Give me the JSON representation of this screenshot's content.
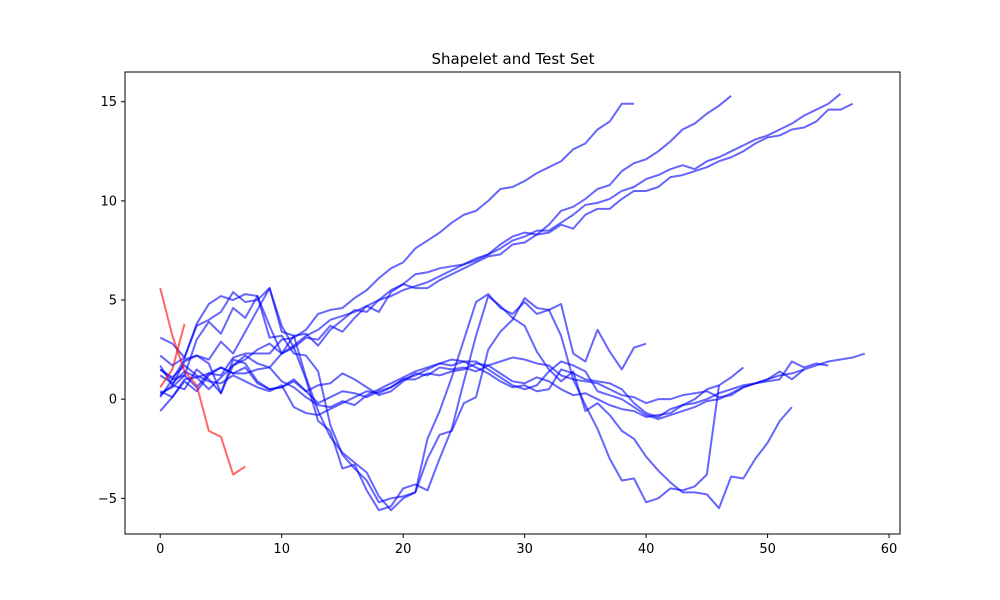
{
  "chart_data": {
    "type": "line",
    "title": "Shapelet and Test Set",
    "xlabel": "",
    "ylabel": "",
    "xlim": [
      -2.9,
      60.9
    ],
    "ylim": [
      -6.8,
      16.5
    ],
    "x_ticks": [
      0,
      10,
      20,
      30,
      40,
      50,
      60
    ],
    "y_ticks": [
      -5,
      0,
      5,
      10,
      15
    ],
    "grid": false,
    "colors": {
      "shapelet": "#ff0000",
      "test": "#0000ff"
    },
    "series": [
      {
        "role": "shapelet",
        "values": [
          5.6,
          3.2,
          1.4,
          0.7,
          -1.6,
          -1.9,
          -3.8,
          -3.4
        ]
      },
      {
        "role": "shapelet",
        "values": [
          0.6,
          1.5,
          3.8
        ]
      },
      {
        "role": "test",
        "values": [
          0.3,
          0.6,
          1.2,
          3.0,
          3.9,
          3.3,
          4.6,
          4.1,
          5.2,
          3.7,
          2.3,
          3.2,
          3.3,
          2.7,
          3.5,
          4.0,
          4.5,
          4.4,
          5.0,
          5.5,
          5.8,
          6.3,
          6.4,
          6.6,
          6.7,
          6.8,
          7.0,
          7.3,
          7.8,
          8.2,
          8.4,
          8.3,
          8.8,
          9.5,
          9.7,
          10.1,
          10.6,
          10.8,
          11.5,
          11.9,
          12.1,
          12.5,
          13.0,
          13.6,
          13.9,
          14.4,
          14.8,
          15.3
        ]
      },
      {
        "role": "test",
        "values": [
          1.5,
          1.0,
          1.2,
          0.6,
          1.3,
          1.2,
          2.1,
          2.3,
          2.3,
          2.3,
          3.0,
          3.1,
          3.5,
          4.3,
          4.5,
          4.6,
          5.1,
          5.5,
          6.1,
          6.6,
          6.9,
          7.6,
          8.0,
          8.4,
          8.9,
          9.3,
          9.5,
          10.0,
          10.6,
          10.7,
          11.0,
          11.4,
          11.7,
          12.0,
          12.6,
          12.9,
          13.6,
          14.0,
          14.9,
          14.9
        ]
      },
      {
        "role": "test",
        "values": [
          0.1,
          1.0,
          2.0,
          2.2,
          1.8,
          0.3,
          1.7,
          2.0,
          2.5,
          2.8,
          2.3,
          2.6,
          3.1,
          3.0,
          3.7,
          3.4,
          4.1,
          4.7,
          4.4,
          5.4,
          5.8,
          5.6,
          5.6,
          6.0,
          6.3,
          6.6,
          6.9,
          7.2,
          7.3,
          7.8,
          7.9,
          8.3,
          8.4,
          8.8,
          8.6,
          9.3,
          9.6,
          9.6,
          10.1,
          10.5,
          10.5,
          10.7,
          11.2,
          11.3,
          11.5,
          11.7,
          12.0,
          12.2,
          12.5,
          12.9,
          13.2,
          13.3,
          13.6,
          13.7,
          14.0,
          14.6,
          14.6,
          14.9
        ]
      },
      {
        "role": "test",
        "values": [
          0.4,
          0.1,
          0.9,
          0.4,
          1.2,
          1.6,
          1.3,
          1.3,
          1.5,
          1.6,
          2.3,
          2.7,
          3.2,
          3.5,
          4.0,
          4.2,
          4.4,
          4.7,
          5.0,
          5.2,
          5.5,
          5.7,
          5.9,
          6.2,
          6.5,
          6.8,
          7.1,
          7.3,
          7.6,
          8.0,
          8.2,
          8.5,
          8.5,
          8.9,
          9.3,
          9.8,
          9.9,
          10.1,
          10.5,
          10.7,
          11.1,
          11.3,
          11.6,
          11.8,
          11.6,
          12.0,
          12.2,
          12.5,
          12.8,
          13.1,
          13.3,
          13.6,
          13.9,
          14.3,
          14.6,
          14.9,
          15.4
        ]
      },
      {
        "role": "test",
        "values": [
          3.1,
          2.8,
          2.1,
          3.8,
          4.8,
          5.2,
          5.0,
          5.3,
          5.2,
          3.1,
          3.2,
          2.3,
          2.2,
          1.4,
          -1.3,
          -2.8,
          -3.5,
          -4.1,
          -5.2,
          -5.0,
          -4.9,
          -4.7,
          -2.0,
          -0.6,
          1.1,
          3.0,
          4.9,
          5.3,
          4.6,
          4.3,
          4.9,
          4.3,
          4.5,
          4.8,
          2.3,
          1.9,
          3.5,
          2.4,
          1.5,
          2.6,
          2.8
        ]
      },
      {
        "role": "test",
        "values": [
          0.2,
          0.7,
          1.9,
          2.2,
          2.0,
          2.9,
          2.3,
          3.4,
          4.5,
          5.6,
          3.4,
          3.2,
          1.1,
          -0.6,
          -1.9,
          -2.7,
          -3.2,
          -3.7,
          -4.9,
          -5.6,
          -5.0,
          -4.7,
          -3.0,
          -1.8,
          -1.6,
          -0.2,
          0.1,
          2.5,
          3.4,
          4.0,
          5.1,
          4.6,
          4.5,
          3.2,
          1.0,
          -0.3,
          -1.5,
          -3.0,
          -4.1,
          -4.0,
          -5.2,
          -5.0,
          -4.5,
          -4.6,
          -4.4,
          -3.8,
          0.7
        ]
      },
      {
        "role": "test",
        "values": [
          2.2,
          1.7,
          2.1,
          3.7,
          4.0,
          4.4,
          5.4,
          4.9,
          5.0,
          5.6,
          3.7,
          2.6,
          1.0,
          -1.1,
          -1.6,
          -3.5,
          -3.3,
          -4.6,
          -5.6,
          -5.4,
          -4.5,
          -4.3,
          -4.6,
          -3.0,
          -1.5,
          0.9,
          3.2,
          5.2,
          4.7,
          4.1,
          3.7,
          2.4,
          1.5,
          0.9,
          1.4,
          -0.6,
          -0.2,
          -0.8,
          -1.6,
          -2.0,
          -2.9,
          -3.6,
          -4.2,
          -4.7,
          -4.7,
          -4.8,
          -5.5,
          -3.9,
          -4.0,
          -3.0,
          -2.2,
          -1.1,
          -0.4
        ]
      },
      {
        "role": "test",
        "values": [
          -0.6,
          0.1,
          1.0,
          1.1,
          1.3,
          1.6,
          1.3,
          1.6,
          0.8,
          0.5,
          0.6,
          0.9,
          0.4,
          -0.2,
          0.1,
          0.4,
          0.3,
          0.1,
          0.4,
          0.6,
          1.0,
          1.2,
          1.5,
          1.8,
          1.7,
          1.9,
          1.9,
          1.5,
          1.1,
          0.7,
          0.5,
          0.7,
          1.4,
          1.9,
          1.7,
          1.4,
          0.4,
          0.2,
          0.0,
          -0.4,
          -0.8,
          -1.0,
          -0.8,
          -0.6,
          -0.4,
          -0.1,
          0.0,
          0.3,
          0.6,
          0.8,
          1.0,
          1.2,
          1.3,
          1.5,
          1.7,
          1.9,
          2.0,
          2.1,
          2.3
        ]
      },
      {
        "role": "test",
        "values": [
          1.2,
          0.8,
          1.4,
          1.1,
          0.5,
          1.1,
          1.7,
          2.2,
          1.8,
          1.6,
          0.9,
          0.6,
          0.1,
          -0.3,
          -0.4,
          -0.1,
          -0.3,
          0.2,
          0.5,
          0.8,
          1.1,
          1.4,
          1.6,
          1.8,
          2.0,
          1.9,
          1.6,
          1.3,
          0.9,
          0.6,
          0.7,
          0.4,
          0.5,
          1.5,
          1.3,
          1.0,
          0.9,
          0.8,
          0.5,
          -0.2,
          -0.7,
          -0.9,
          -0.5,
          -0.3,
          -0.2,
          0.0,
          0.3,
          0.5,
          0.7,
          0.8,
          1.0,
          1.4,
          1.0,
          1.5
        ]
      },
      {
        "role": "test",
        "values": [
          1.5,
          1.1,
          1.7,
          1.2,
          0.9,
          0.8,
          1.2,
          0.9,
          0.6,
          0.4,
          0.7,
          -0.4,
          -0.7,
          -0.8,
          -0.5,
          -0.2,
          0.1,
          0.4,
          0.3,
          0.6,
          1.0,
          1.0,
          1.3,
          1.2,
          1.4,
          1.5,
          1.8,
          1.7,
          1.9,
          2.1,
          2.0,
          1.8,
          1.7,
          1.2,
          1.0,
          0.9,
          0.8,
          0.5,
          0.2,
          0.1,
          -0.2,
          0.0,
          0.0,
          0.2,
          0.3,
          0.4,
          0.1,
          0.2,
          0.6,
          0.8,
          0.9,
          1.0,
          1.9,
          1.6,
          1.8,
          1.7
        ]
      },
      {
        "role": "test",
        "values": [
          1.7,
          0.7,
          0.5,
          1.5,
          1.0,
          0.3,
          2.0,
          1.8,
          0.9,
          0.5,
          0.6,
          1.0,
          0.4,
          0.7,
          0.8,
          1.3,
          1.0,
          0.6,
          0.2,
          0.4,
          0.9,
          1.3,
          1.2,
          1.6,
          1.5,
          1.6,
          1.4,
          1.7,
          1.3,
          0.9,
          0.8,
          1.1,
          0.9,
          0.5,
          0.2,
          0.3,
          0.0,
          -0.3,
          -0.5,
          -0.6,
          -0.9,
          -0.8,
          -0.7,
          -0.3,
          0.0,
          0.5,
          0.7,
          1.1,
          1.6
        ]
      }
    ]
  }
}
